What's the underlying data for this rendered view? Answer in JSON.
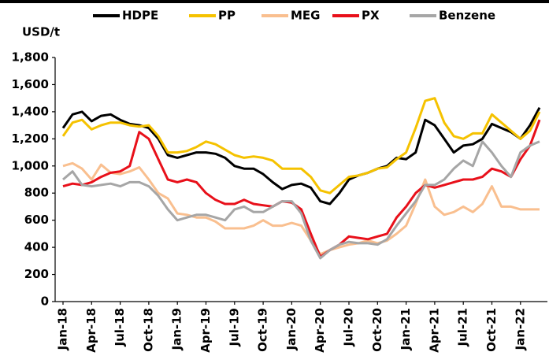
{
  "chart_data": {
    "type": "line",
    "y_label": "USD/t",
    "categories": [
      "Jan-18",
      null,
      null,
      "Apr-18",
      null,
      null,
      "Jul-18",
      null,
      null,
      "Oct-18",
      null,
      null,
      "Jan-19",
      null,
      null,
      "Apr-19",
      null,
      null,
      "Jul-19",
      null,
      null,
      "Oct-19",
      null,
      null,
      "Jan-20",
      null,
      null,
      "Apr-20",
      null,
      null,
      "Jul-20",
      null,
      null,
      "Oct-20",
      null,
      null,
      "Jan-21",
      null,
      null,
      "Apr-21",
      null,
      null,
      "Jul-21",
      null,
      null,
      "Oct-21",
      null,
      null,
      "Jan-22",
      null,
      null
    ],
    "series": [
      {
        "name": "HDPE",
        "color": "#000000",
        "values": [
          1280,
          1380,
          1400,
          1330,
          1370,
          1380,
          1340,
          1310,
          1300,
          1280,
          1200,
          1080,
          1060,
          1080,
          1100,
          1100,
          1090,
          1060,
          1000,
          980,
          980,
          940,
          880,
          830,
          860,
          870,
          840,
          740,
          720,
          800,
          900,
          930,
          950,
          980,
          1000,
          1060,
          1050,
          1100,
          1340,
          1300,
          1200,
          1100,
          1150,
          1160,
          1200,
          1310,
          1280,
          1250,
          1200,
          1300,
          1430
        ]
      },
      {
        "name": "PP",
        "color": "#f5c200",
        "values": [
          1220,
          1320,
          1340,
          1270,
          1300,
          1320,
          1320,
          1300,
          1290,
          1300,
          1220,
          1100,
          1100,
          1110,
          1140,
          1180,
          1160,
          1120,
          1080,
          1060,
          1070,
          1060,
          1040,
          980,
          980,
          980,
          920,
          820,
          800,
          860,
          920,
          930,
          950,
          980,
          990,
          1050,
          1100,
          1280,
          1480,
          1500,
          1320,
          1220,
          1200,
          1240,
          1240,
          1380,
          1320,
          1260,
          1200,
          1260,
          1400
        ]
      },
      {
        "name": "MEG",
        "color": "#f9bf8f",
        "values": [
          1000,
          1020,
          980,
          900,
          1010,
          950,
          940,
          960,
          990,
          900,
          800,
          760,
          650,
          640,
          620,
          620,
          590,
          540,
          540,
          540,
          560,
          600,
          560,
          560,
          580,
          560,
          450,
          350,
          380,
          400,
          420,
          430,
          450,
          430,
          450,
          500,
          560,
          720,
          900,
          700,
          640,
          660,
          700,
          660,
          720,
          850,
          700,
          700,
          680,
          680,
          680
        ]
      },
      {
        "name": "PX",
        "color": "#e8101a",
        "values": [
          850,
          870,
          860,
          880,
          920,
          950,
          960,
          1000,
          1250,
          1200,
          1050,
          900,
          880,
          900,
          880,
          800,
          750,
          720,
          720,
          750,
          720,
          710,
          700,
          740,
          730,
          680,
          500,
          330,
          380,
          420,
          480,
          470,
          460,
          480,
          500,
          620,
          700,
          800,
          860,
          840,
          860,
          880,
          900,
          900,
          920,
          980,
          960,
          920,
          1050,
          1150,
          1340
        ]
      },
      {
        "name": "Benzene",
        "color": "#a6a6a6",
        "values": [
          900,
          960,
          860,
          850,
          860,
          870,
          850,
          880,
          880,
          850,
          780,
          680,
          600,
          620,
          640,
          640,
          620,
          600,
          680,
          700,
          660,
          660,
          700,
          740,
          740,
          650,
          450,
          320,
          380,
          420,
          440,
          430,
          430,
          420,
          460,
          560,
          650,
          740,
          860,
          860,
          900,
          980,
          1040,
          1000,
          1180,
          1100,
          1000,
          920,
          1100,
          1150,
          1180
        ]
      }
    ],
    "ylim": [
      0,
      1800
    ],
    "yticks": [
      0,
      200,
      400,
      600,
      800,
      {
        "value": 1000,
        "label": "1,000"
      },
      {
        "value": 1200,
        "label": "1,200"
      },
      {
        "value": 1400,
        "label": "1,400"
      },
      {
        "value": 1600,
        "label": "1,600"
      },
      {
        "value": 1800,
        "label": "1,800"
      }
    ],
    "legend": "top"
  }
}
